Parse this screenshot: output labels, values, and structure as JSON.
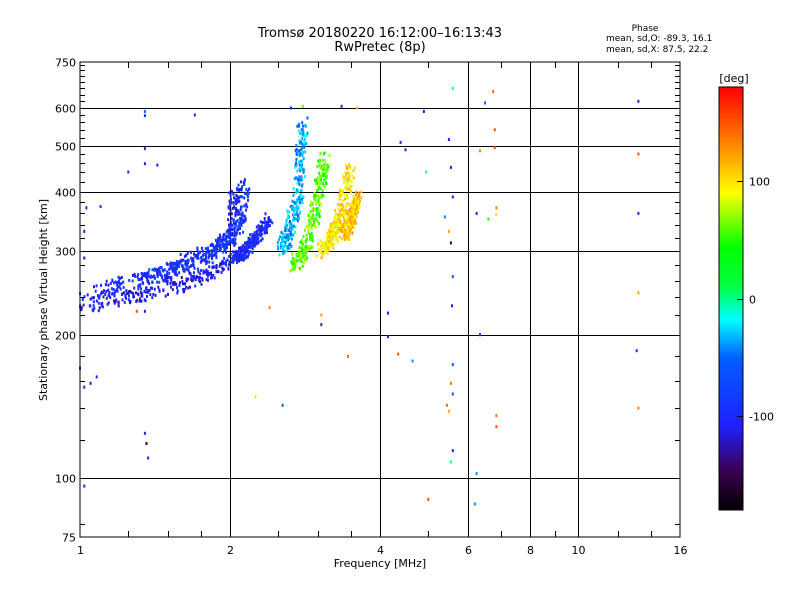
{
  "chart_data": {
    "type": "scatter",
    "title": "Tromsø 20180220 16:12:00–16:13:43",
    "subtitle": "RwPretec (8p)",
    "xlabel": "Frequency [MHz]",
    "ylabel": "Stationary phase Virtual Height [km]",
    "x_scale": "log",
    "y_scale": "log",
    "xlim": [
      1,
      16
    ],
    "ylim": [
      75,
      750
    ],
    "x_ticks": [
      1,
      2,
      4,
      6,
      8,
      10,
      16
    ],
    "x_tick_labels": [
      "1",
      "2",
      "4",
      "6",
      "8",
      "10",
      "16"
    ],
    "y_ticks": [
      75,
      100,
      200,
      300,
      400,
      500,
      600,
      750
    ],
    "y_tick_labels": [
      "75",
      "100",
      "200",
      "300",
      "400",
      "500",
      "600",
      "750"
    ],
    "grid": true,
    "phase_stats": {
      "label": "Phase",
      "o_line": "mean, sd,O: -89.3, 16.1",
      "x_line": "mean, sd,X:  87.5, 22.2"
    },
    "colorbar": {
      "label": "[deg]",
      "range": [
        -180,
        180
      ],
      "ticks": [
        100,
        0,
        -100
      ],
      "tick_labels": [
        "100",
        "0",
        "-100"
      ]
    },
    "traces": [
      {
        "f": [
          1.0,
          1.2,
          1.4,
          1.6,
          1.8,
          2.0,
          2.05
        ],
        "h": [
          230,
          237,
          245,
          255,
          268,
          285,
          400
        ],
        "phase": -110,
        "spread": 0.05
      },
      {
        "f": [
          1.0,
          1.2,
          1.4,
          1.6,
          1.8,
          2.0,
          2.05
        ],
        "h": [
          242,
          255,
          265,
          278,
          292,
          320,
          410
        ],
        "phase": -100,
        "spread": 0.05
      },
      {
        "f": [
          1.3,
          1.5,
          1.7,
          1.9,
          2.0,
          2.1,
          2.15
        ],
        "h": [
          255,
          275,
          292,
          305,
          320,
          345,
          420
        ],
        "phase": -90,
        "spread": 0.05
      },
      {
        "f": [
          2.05,
          2.15,
          2.25,
          2.4
        ],
        "h": [
          290,
          300,
          320,
          350
        ],
        "phase": -100,
        "spread": 0.04
      },
      {
        "f": [
          2.55,
          2.65,
          2.75,
          2.8
        ],
        "h": [
          300,
          340,
          400,
          560
        ],
        "phase": -35,
        "spread": 0.05
      },
      {
        "f": [
          2.7,
          2.85,
          3.0,
          3.1
        ],
        "h": [
          280,
          310,
          380,
          470
        ],
        "phase": 60,
        "spread": 0.05
      },
      {
        "f": [
          3.05,
          3.2,
          3.35,
          3.5
        ],
        "h": [
          300,
          320,
          360,
          450
        ],
        "phase": 100,
        "spread": 0.05
      },
      {
        "f": [
          3.4,
          3.5,
          3.6
        ],
        "h": [
          320,
          350,
          390
        ],
        "phase": 110,
        "spread": 0.04
      }
    ],
    "scatter_points": [
      [
        1.02,
        290,
        -120
      ],
      [
        1.02,
        330,
        -115
      ],
      [
        1.03,
        370,
        -110
      ],
      [
        1.1,
        372,
        -100
      ],
      [
        1.0,
        170,
        -120
      ],
      [
        1.02,
        155,
        -110
      ],
      [
        1.08,
        163,
        -100
      ],
      [
        1.05,
        158,
        -115
      ],
      [
        1.35,
        590,
        -50
      ],
      [
        1.35,
        578,
        -100
      ],
      [
        1.35,
        493,
        -100
      ],
      [
        1.35,
        458,
        -110
      ],
      [
        1.43,
        455,
        -110
      ],
      [
        1.25,
        440,
        -100
      ],
      [
        1.7,
        580,
        -100
      ],
      [
        1.3,
        224,
        150
      ],
      [
        1.35,
        224,
        -110
      ],
      [
        1.35,
        124,
        -110
      ],
      [
        1.36,
        118,
        -150
      ],
      [
        1.37,
        110,
        -110
      ],
      [
        1.02,
        96,
        -110
      ],
      [
        2.4,
        228,
        130
      ],
      [
        2.25,
        148,
        100
      ],
      [
        2.55,
        142,
        -50
      ],
      [
        2.65,
        600,
        -110
      ],
      [
        2.8,
        605,
        60
      ],
      [
        3.35,
        605,
        -110
      ],
      [
        3.6,
        600,
        110
      ],
      [
        3.05,
        220,
        120
      ],
      [
        3.05,
        210,
        -100
      ],
      [
        3.45,
        180,
        140
      ],
      [
        4.15,
        222,
        -110
      ],
      [
        4.15,
        198,
        -100
      ],
      [
        4.35,
        182,
        150
      ],
      [
        4.65,
        176,
        -40
      ],
      [
        4.4,
        508,
        -110
      ],
      [
        4.5,
        490,
        -110
      ],
      [
        4.9,
        590,
        -110
      ],
      [
        4.95,
        440,
        -20
      ],
      [
        5.5,
        515,
        -110
      ],
      [
        5.55,
        450,
        -110
      ],
      [
        5.6,
        390,
        -110
      ],
      [
        5.5,
        330,
        120
      ],
      [
        5.55,
        312,
        -150
      ],
      [
        5.4,
        354,
        -40
      ],
      [
        5.6,
        265,
        -50
      ],
      [
        5.58,
        230,
        -110
      ],
      [
        5.6,
        173,
        -50
      ],
      [
        5.55,
        158,
        140
      ],
      [
        5.6,
        150,
        -50
      ],
      [
        5.45,
        142,
        140
      ],
      [
        5.5,
        138,
        120
      ],
      [
        5.6,
        114,
        -110
      ],
      [
        5.55,
        108,
        0
      ],
      [
        5.0,
        90,
        150
      ],
      [
        6.25,
        102,
        -40
      ],
      [
        6.2,
        88,
        -40
      ],
      [
        6.35,
        200,
        -100
      ],
      [
        6.35,
        488,
        130
      ],
      [
        6.25,
        360,
        -110
      ],
      [
        6.5,
        615,
        -50
      ],
      [
        6.75,
        650,
        140
      ],
      [
        6.8,
        540,
        150
      ],
      [
        6.8,
        495,
        150
      ],
      [
        6.85,
        370,
        140
      ],
      [
        6.85,
        358,
        100
      ],
      [
        6.85,
        135,
        140
      ],
      [
        6.85,
        128,
        150
      ],
      [
        6.6,
        350,
        50
      ],
      [
        5.6,
        660,
        0
      ],
      [
        13.2,
        620,
        -110
      ],
      [
        13.2,
        480,
        150
      ],
      [
        13.2,
        360,
        -110
      ],
      [
        13.2,
        245,
        120
      ],
      [
        13.1,
        185,
        -90
      ],
      [
        13.2,
        140,
        130
      ]
    ]
  }
}
